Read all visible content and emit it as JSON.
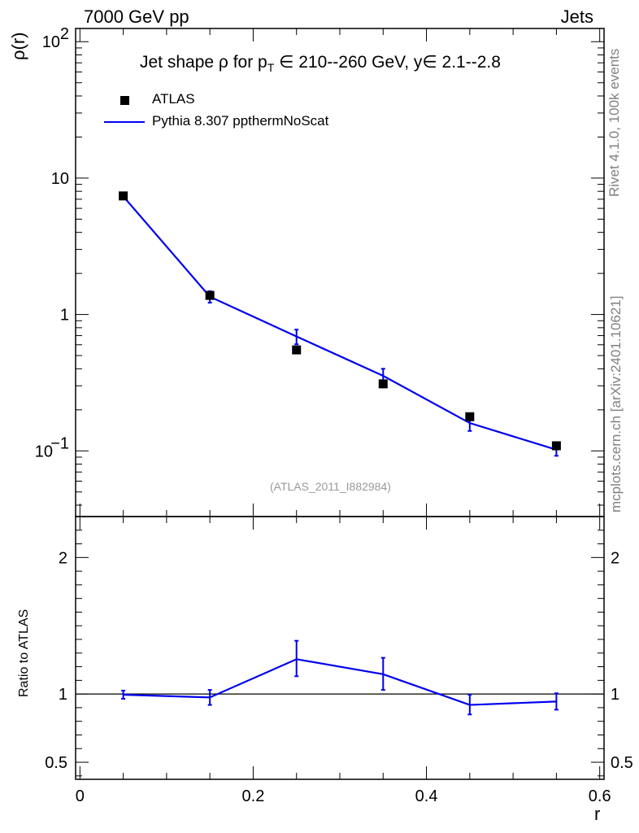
{
  "header": {
    "left": "7000 GeV pp",
    "right": "Jets"
  },
  "side_labels": {
    "rivet": "Rivet 4.1.0,  100k events",
    "mcplots": "mcplots.cern.ch [arXiv:2401.10621]"
  },
  "watermark": "(ATLAS_2011_I882984)",
  "title": {
    "prefix": "Jet shape ",
    "rho": "ρ",
    "for_p": " for p",
    "sub": "T",
    "range": " ∈ 210--260 GeV, y∈ 2.1--2.8"
  },
  "legend": {
    "data_label": "ATLAS",
    "mc_label": "Pythia 8.307 ppthermNoScat"
  },
  "colors": {
    "data": "#000000",
    "mc": "#0000ee"
  },
  "chart_data": [
    {
      "type": "scatter+line",
      "panel": "main",
      "ylabel": "ρ(r)",
      "yscale": "log",
      "ylim": [
        0.033,
        125
      ],
      "y_ticks": [
        {
          "value": 0.1,
          "label": "10",
          "exp": "−1"
        },
        {
          "value": 1,
          "label": "1",
          "exp": ""
        },
        {
          "value": 10,
          "label": "10",
          "exp": ""
        },
        {
          "value": 100,
          "label": "10",
          "exp": "2"
        }
      ],
      "xlim": [
        -0.005,
        0.605
      ],
      "series": [
        {
          "name": "ATLAS",
          "x": [
            0.05,
            0.15,
            0.25,
            0.35,
            0.45,
            0.55
          ],
          "y": [
            7.4,
            1.38,
            0.55,
            0.31,
            0.178,
            0.109
          ]
        },
        {
          "name": "Pythia 8.307 ppthermNoScat",
          "x": [
            0.05,
            0.15,
            0.25,
            0.35,
            0.45,
            0.55
          ],
          "y": [
            7.35,
            1.35,
            0.69,
            0.355,
            0.16,
            0.102
          ],
          "err_low": [
            0.25,
            0.13,
            0.085,
            0.045,
            0.02,
            0.01
          ],
          "err_high": [
            0.25,
            0.13,
            0.085,
            0.045,
            0.02,
            0.01
          ]
        }
      ]
    },
    {
      "type": "line",
      "panel": "ratio",
      "ylabel": "Ratio to ATLAS",
      "xlabel": "r",
      "ylim": [
        0.375,
        2.3
      ],
      "y_ticks": [
        {
          "value": 0.5,
          "label": "0.5"
        },
        {
          "value": 1,
          "label": "1"
        },
        {
          "value": 2,
          "label": "2"
        }
      ],
      "x_ticks": [
        {
          "value": 0,
          "label": "0"
        },
        {
          "value": 0.2,
          "label": "0.2"
        },
        {
          "value": 0.4,
          "label": "0.4"
        },
        {
          "value": 0.6,
          "label": "0.6"
        }
      ],
      "reference": 1,
      "series": [
        {
          "name": "Pythia 8.307 ppthermNoScat / ATLAS",
          "x": [
            0.05,
            0.15,
            0.25,
            0.35,
            0.45,
            0.55
          ],
          "y": [
            0.995,
            0.975,
            1.255,
            1.145,
            0.92,
            0.945
          ],
          "err_low": [
            0.03,
            0.055,
            0.125,
            0.115,
            0.07,
            0.06
          ],
          "err_high": [
            0.03,
            0.055,
            0.135,
            0.12,
            0.075,
            0.06
          ]
        }
      ]
    }
  ]
}
